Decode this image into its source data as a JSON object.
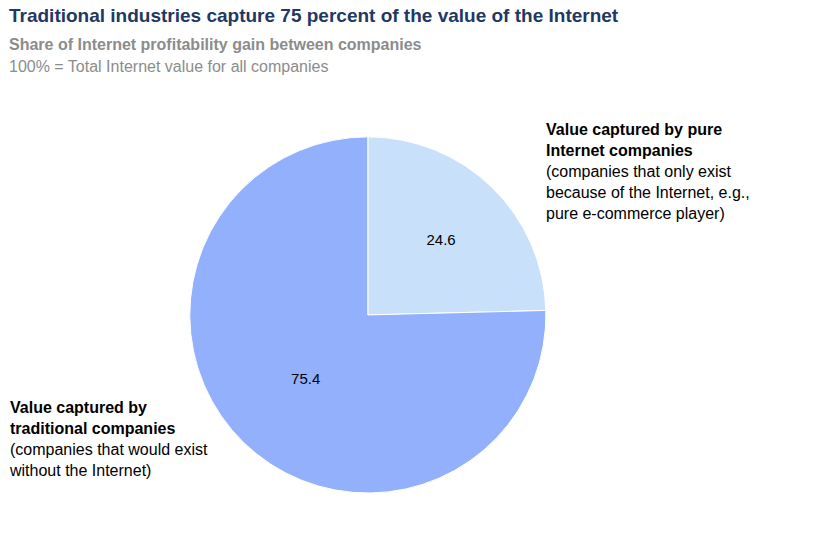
{
  "chart_data": {
    "type": "pie",
    "title": "Traditional industries capture 75 percent of the value of the Internet",
    "subtitle": [
      "Share of Internet profitability gain between companies",
      "100% = Total Internet value for all companies"
    ],
    "categories": [
      "Value captured by pure Internet companies",
      "Value captured by traditional companies"
    ],
    "category_notes": [
      "(companies that only exist because of the Internet, e.g., pure e-commerce player)",
      "(companies that would exist without the Internet)"
    ],
    "values": [
      24.6,
      75.4
    ],
    "colors": [
      "#c9e0fb",
      "#92b0fc"
    ],
    "data_labels": true
  }
}
